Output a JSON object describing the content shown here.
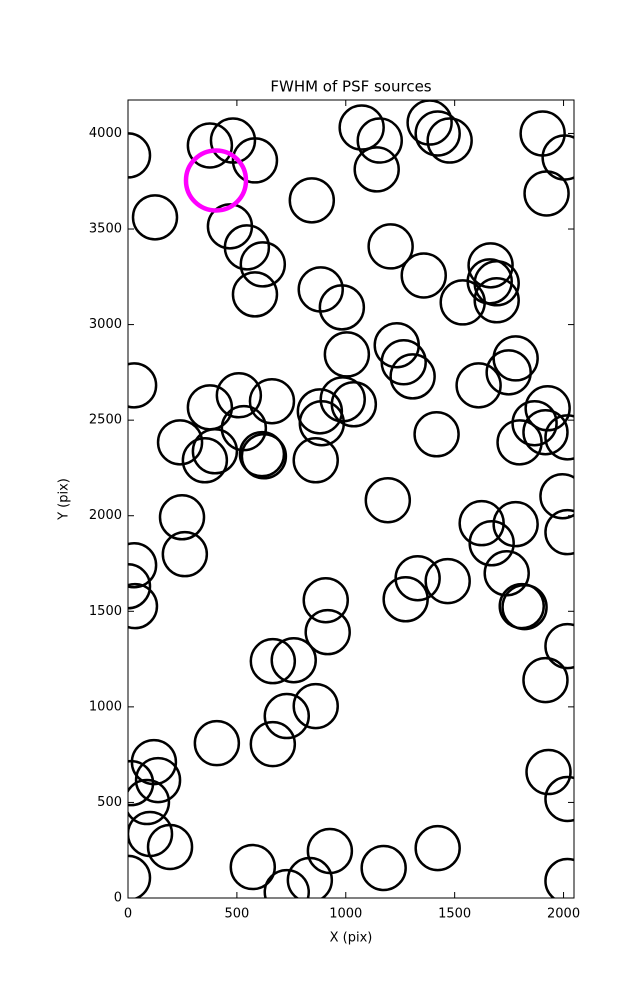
{
  "chart_data": {
    "type": "scatter",
    "title": "FWHM of PSF sources",
    "x_label": "X (pix)",
    "y_label": "Y (pix)",
    "xlim": [
      0,
      2048
    ],
    "ylim": [
      0,
      4175
    ],
    "xticks": [
      0,
      500,
      1000,
      1500,
      2000
    ],
    "yticks": [
      0,
      500,
      1000,
      1500,
      2000,
      2500,
      3000,
      3500,
      4000
    ],
    "series": [
      {
        "color": "#000000",
        "x": [
          0,
          376,
          482,
          583,
          124,
          468,
          546,
          619,
          583,
          844,
          1073,
          1156,
          1142,
          1385,
          1422,
          1477,
          1904,
          1922,
          2005,
          1206,
          1358,
          885,
          982,
          1537,
          1661,
          1665,
          1693,
          1693,
          1234,
          1266,
          1307,
          1005,
          1780,
          1748,
          1610,
          28,
          509,
          661,
          376,
          986,
          1037,
          881,
          890,
          532,
          239,
          353,
          399,
          615,
          624,
          862,
          1417,
          1798,
          1867,
          1927,
          1917,
          2018,
          1193,
          1995,
          2018,
          248,
          261,
          28,
          0,
          32,
          1624,
          1670,
          1780,
          1739,
          1808,
          1821,
          1330,
          1468,
          1275,
          908,
          917,
          665,
          761,
          2018,
          1917,
          862,
          729,
          665,
          408,
          119,
          138,
          14,
          87,
          101,
          193,
          0,
          573,
          729,
          835,
          927,
          1174,
          1422,
          1931,
          2018,
          2018
        ],
        "y": [
          3885,
          3937,
          3963,
          3859,
          3561,
          3514,
          3404,
          3315,
          3158,
          3650,
          4031,
          3963,
          3812,
          4057,
          4000,
          3963,
          4000,
          3686,
          3874,
          3409,
          3257,
          3184,
          3090,
          3116,
          3226,
          3310,
          3216,
          3127,
          2892,
          2803,
          2729,
          2844,
          2823,
          2750,
          2682,
          2682,
          2630,
          2599,
          2567,
          2609,
          2583,
          2546,
          2484,
          2458,
          2384,
          2290,
          2337,
          2322,
          2311,
          2290,
          2426,
          2384,
          2484,
          2562,
          2437,
          2410,
          2081,
          2102,
          1914,
          1992,
          1799,
          1741,
          1631,
          1527,
          1961,
          1856,
          1956,
          1699,
          1527,
          1522,
          1673,
          1658,
          1563,
          1558,
          1391,
          1239,
          1244,
          1318,
          1140,
          1004,
          952,
          805,
          810,
          711,
          617,
          601,
          502,
          335,
          267,
          105,
          162,
          31,
          94,
          246,
          157,
          261,
          659,
          518,
          89
        ]
      },
      {
        "color": "#ff00ff",
        "x": [
          404
        ],
        "y": [
          3754
        ]
      }
    ]
  }
}
